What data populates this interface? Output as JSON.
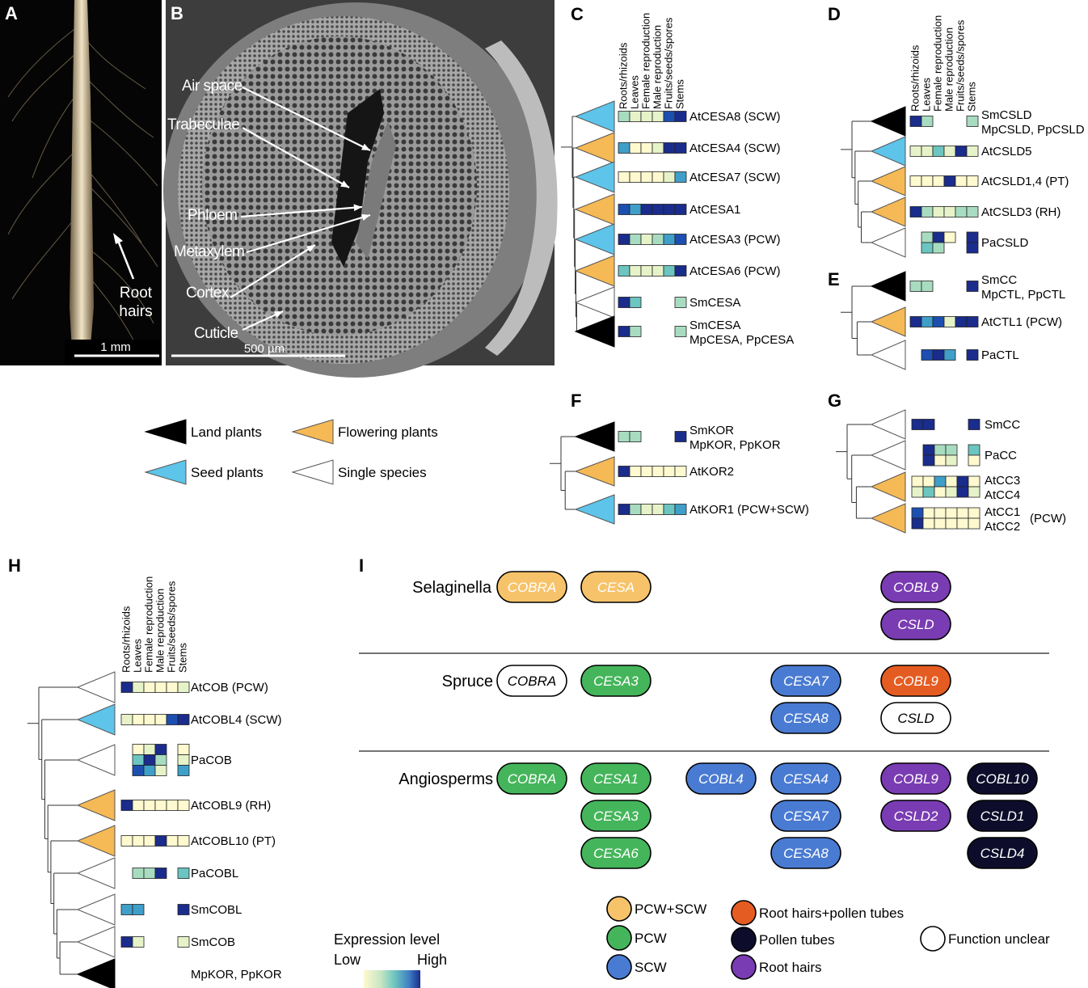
{
  "panel_letters": {
    "A": "A",
    "B": "B",
    "C": "C",
    "D": "D",
    "E": "E",
    "F": "F",
    "G": "G",
    "H": "H",
    "I": "I"
  },
  "panel_a": {
    "label": "Root\nhairs",
    "scale": "1 mm"
  },
  "panel_b": {
    "labels": [
      "Air space",
      "Trabeculae",
      "Phloem",
      "Metaxylem",
      "Cortex",
      "Cuticle"
    ],
    "scale": "500 µm"
  },
  "tissues": [
    "Roots/rhizoids",
    "Leaves",
    "Female reproduction",
    "Male reproduction",
    "Fruits/seeds/spores",
    "Stems"
  ],
  "colors": {
    "land": "#000000",
    "flowering": "#f5b955",
    "seed": "#5ec4ea",
    "single": "#ffffff",
    "expr": [
      "#fff9cf",
      "#e6f2c8",
      "#a8dcc0",
      "#6cc5c0",
      "#3f9fc9",
      "#1d4fb0",
      "#1a2c8c"
    ],
    "pcw_scw": "#f7c36a",
    "pcw": "#45b55b",
    "scw": "#4a7bd2",
    "root_pollen": "#e55c22",
    "pollen": "#0d0d2b",
    "root": "#7a3cb2",
    "unclear": "#ffffff"
  },
  "legend_clades": [
    {
      "label": "Land plants",
      "clade": "land"
    },
    {
      "label": "Flowering plants",
      "clade": "flowering"
    },
    {
      "label": "Seed plants",
      "clade": "seed"
    },
    {
      "label": "Single species",
      "clade": "single"
    }
  ],
  "expression_legend": {
    "title": "Expression level",
    "low": "Low",
    "high": "High"
  },
  "panel_c": {
    "rows": [
      {
        "clade": "seed",
        "cells": [
          2,
          1,
          1,
          1,
          5,
          6
        ],
        "label": "AtCESA8 (SCW)"
      },
      {
        "clade": "flowering",
        "cells": [
          4,
          0,
          0,
          1,
          6,
          6
        ],
        "label": "AtCESA4 (SCW)"
      },
      {
        "clade": "seed",
        "cells": [
          0,
          0,
          0,
          0,
          1,
          4
        ],
        "label": "AtCESA7 (SCW)"
      },
      {
        "clade": "flowering",
        "cells": [
          5,
          4,
          6,
          6,
          6,
          6
        ],
        "label": "AtCESA1"
      },
      {
        "clade": "seed",
        "cells": [
          6,
          2,
          1,
          2,
          4,
          5
        ],
        "label": "AtCESA3 (PCW)"
      },
      {
        "clade": "flowering",
        "cells": [
          3,
          1,
          1,
          1,
          3,
          6
        ],
        "label": "AtCESA6 (PCW)"
      },
      {
        "clade": "single",
        "cells": [
          6,
          3,
          -1,
          -1,
          -1,
          2
        ],
        "label": "SmCESA"
      },
      {
        "clade": "land",
        "cells": [
          6,
          2,
          -1,
          -1,
          -1,
          2
        ],
        "label": "SmCESA\nMpCESA, PpCESA"
      }
    ]
  },
  "panel_d": {
    "rows": [
      {
        "clade": "land",
        "cells": [
          6,
          2,
          -1,
          -1,
          -1,
          2
        ],
        "label": "SmCSLD\nMpCSLD, PpCSLD"
      },
      {
        "clade": "seed",
        "cells": [
          1,
          1,
          3,
          1,
          6,
          1
        ],
        "label": "AtCSLD5"
      },
      {
        "clade": "flowering",
        "cells": [
          0,
          0,
          0,
          6,
          0,
          0
        ],
        "label": "AtCSLD1,4 (PT)"
      },
      {
        "clade": "flowering",
        "cells": [
          6,
          2,
          1,
          1,
          2,
          2
        ],
        "label": "AtCSLD3 (RH)"
      },
      {
        "clade": "single",
        "cells": [
          -1,
          2,
          6,
          0,
          -1,
          6
        ],
        "label": "PaCSLD",
        "cells2": [
          -1,
          3,
          2,
          -1,
          -1,
          6
        ]
      }
    ]
  },
  "panel_e": {
    "rows": [
      {
        "clade": "land",
        "cells": [
          2,
          2,
          -1,
          -1,
          -1,
          6
        ],
        "label": "SmCC\nMpCTL, PpCTL"
      },
      {
        "clade": "flowering",
        "cells": [
          6,
          4,
          5,
          1,
          6,
          6
        ],
        "label": "AtCTL1 (PCW)"
      },
      {
        "clade": "single",
        "cells": [
          -1,
          5,
          6,
          4,
          -1,
          6
        ],
        "label": "PaCTL"
      }
    ]
  },
  "panel_f": {
    "rows": [
      {
        "clade": "land",
        "cells": [
          2,
          2,
          -1,
          -1,
          -1,
          6
        ],
        "label": "SmKOR\nMpKOR, PpKOR"
      },
      {
        "clade": "flowering",
        "cells": [
          6,
          0,
          0,
          0,
          0,
          0
        ],
        "label": "AtKOR2"
      },
      {
        "clade": "seed",
        "cells": [
          6,
          2,
          1,
          1,
          3,
          4
        ],
        "label": "AtKOR1 (PCW+SCW)"
      }
    ]
  },
  "panel_g": {
    "rows": [
      {
        "clade": "single",
        "cells": [
          6,
          6,
          -1,
          -1,
          -1,
          6
        ],
        "label": "SmCC"
      },
      {
        "clade": "single",
        "cells": [
          -1,
          6,
          2,
          2,
          -1,
          3
        ],
        "label": "PaCC",
        "cells2": [
          -1,
          6,
          0,
          1,
          -1,
          0
        ]
      },
      {
        "clade": "flowering",
        "cells": [
          0,
          0,
          4,
          0,
          6,
          0
        ],
        "label": "AtCC3\nAtCC4",
        "cells2": [
          1,
          3,
          0,
          1,
          6,
          1
        ]
      },
      {
        "clade": "flowering",
        "cells": [
          5,
          0,
          0,
          0,
          0,
          0
        ],
        "label": "AtCC1\nAtCC2",
        "cells2": [
          6,
          0,
          0,
          0,
          0,
          0
        ],
        "suffix": "(PCW)"
      }
    ]
  },
  "panel_h": {
    "rows": [
      {
        "clade": "single",
        "cells": [
          6,
          1,
          0,
          0,
          0,
          1
        ],
        "label": "AtCOB (PCW)"
      },
      {
        "clade": "seed",
        "cells": [
          1,
          0,
          0,
          0,
          5,
          6
        ],
        "label": "AtCOBL4 (SCW)"
      },
      {
        "clade": "single",
        "cells": [
          -1,
          0,
          1,
          6,
          -1,
          0
        ],
        "label": "PaCOB",
        "cells2": [
          -1,
          3,
          6,
          2,
          -1,
          1
        ],
        "cells3": [
          -1,
          5,
          4,
          1,
          -1,
          4
        ]
      },
      {
        "clade": "flowering",
        "cells": [
          6,
          0,
          0,
          0,
          0,
          0
        ],
        "label": "AtCOBL9 (RH)"
      },
      {
        "clade": "flowering",
        "cells": [
          0,
          0,
          0,
          6,
          0,
          0
        ],
        "label": "AtCOBL10 (PT)"
      },
      {
        "clade": "single",
        "cells": [
          -1,
          2,
          2,
          6,
          -1,
          3
        ],
        "label": "PaCOBL"
      },
      {
        "clade": "single",
        "cells": [
          4,
          4,
          -1,
          -1,
          -1,
          6
        ],
        "label": "SmCOBL"
      },
      {
        "clade": "single",
        "cells": [
          6,
          1,
          -1,
          -1,
          -1,
          1
        ],
        "label": "SmCOB"
      },
      {
        "clade": "land",
        "cells": [],
        "label": "MpKOR, PpKOR"
      }
    ]
  },
  "panel_i": {
    "groups": [
      {
        "name": "Selaginella",
        "pills": [
          {
            "text": "COBRA",
            "cls": "pcw_scw",
            "col": 0,
            "row": 0
          },
          {
            "text": "CESA",
            "cls": "pcw_scw",
            "col": 1,
            "row": 0
          },
          {
            "text": "COBL9",
            "cls": "root",
            "col": 4,
            "row": 0
          },
          {
            "text": "CSLD",
            "cls": "root",
            "col": 4,
            "row": 1
          }
        ]
      },
      {
        "name": "Spruce",
        "pills": [
          {
            "text": "COBRA",
            "cls": "unclear",
            "col": 0,
            "row": 0
          },
          {
            "text": "CESA3",
            "cls": "pcw",
            "col": 1,
            "row": 0
          },
          {
            "text": "CESA7",
            "cls": "scw",
            "col": 3,
            "row": 0
          },
          {
            "text": "CESA8",
            "cls": "scw",
            "col": 3,
            "row": 1
          },
          {
            "text": "COBL9",
            "cls": "root_pollen",
            "col": 4,
            "row": 0
          },
          {
            "text": "CSLD",
            "cls": "unclear",
            "col": 4,
            "row": 1
          }
        ]
      },
      {
        "name": "Angiosperms",
        "pills": [
          {
            "text": "COBRA",
            "cls": "pcw",
            "col": 0,
            "row": 0
          },
          {
            "text": "CESA1",
            "cls": "pcw",
            "col": 1,
            "row": 0
          },
          {
            "text": "CESA3",
            "cls": "pcw",
            "col": 1,
            "row": 1
          },
          {
            "text": "CESA6",
            "cls": "pcw",
            "col": 1,
            "row": 2
          },
          {
            "text": "COBL4",
            "cls": "scw",
            "col": 2,
            "row": 0
          },
          {
            "text": "CESA4",
            "cls": "scw",
            "col": 3,
            "row": 0
          },
          {
            "text": "CESA7",
            "cls": "scw",
            "col": 3,
            "row": 1
          },
          {
            "text": "CESA8",
            "cls": "scw",
            "col": 3,
            "row": 2
          },
          {
            "text": "COBL9",
            "cls": "root",
            "col": 4,
            "row": 0
          },
          {
            "text": "CSLD2",
            "cls": "root",
            "col": 4,
            "row": 1
          },
          {
            "text": "COBL10",
            "cls": "pollen",
            "col": 5,
            "row": 0
          },
          {
            "text": "CSLD1",
            "cls": "pollen",
            "col": 5,
            "row": 1
          },
          {
            "text": "CSLD4",
            "cls": "pollen",
            "col": 5,
            "row": 2
          }
        ]
      }
    ],
    "legend": [
      {
        "label": "PCW+SCW",
        "cls": "pcw_scw"
      },
      {
        "label": "PCW",
        "cls": "pcw"
      },
      {
        "label": "SCW",
        "cls": "scw"
      },
      {
        "label": "Root hairs+pollen tubes",
        "cls": "root_pollen"
      },
      {
        "label": "Pollen tubes",
        "cls": "pollen"
      },
      {
        "label": "Root hairs",
        "cls": "root"
      },
      {
        "label": "Function unclear",
        "cls": "unclear"
      }
    ]
  }
}
